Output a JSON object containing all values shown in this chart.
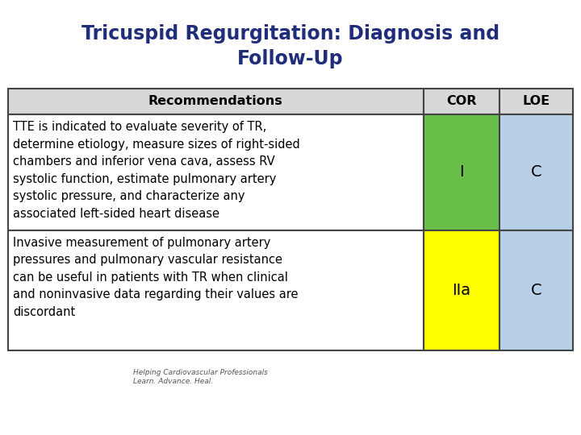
{
  "title_line1": "Tricuspid Regurgitation: Diagnosis and",
  "title_line2": "Follow-Up",
  "title_color": "#1f2d7b",
  "title_fontsize": 17,
  "header": [
    "Recommendations",
    "COR",
    "LOE"
  ],
  "header_bg": "#d8d8d8",
  "rows": [
    {
      "recommendation": "TTE is indicated to evaluate severity of TR,\ndetermine etiology, measure sizes of right-sided\nchambers and inferior vena cava, assess RV\nsystolic function, estimate pulmonary artery\nsystolic pressure, and characterize any\nassociated left-sided heart disease",
      "cor": "I",
      "loe": "C",
      "cor_bg": "#6abf4b",
      "loe_bg": "#b8cfe8"
    },
    {
      "recommendation": "Invasive measurement of pulmonary artery\npressures and pulmonary vascular resistance\ncan be useful in patients with TR when clinical\nand noninvasive data regarding their values are\ndiscordant",
      "cor": "IIa",
      "loe": "C",
      "cor_bg": "#ffff00",
      "loe_bg": "#b8cfe8"
    }
  ],
  "table_border_color": "#444444",
  "bg_color": "#ffffff",
  "text_fontsize": 10.5,
  "header_fontsize": 11.5,
  "cor_loe_fontsize": 14,
  "footer_text": "Helping Cardiovascular Professionals\nLearn. Advance. Heal.",
  "footer_fontsize": 6.5
}
